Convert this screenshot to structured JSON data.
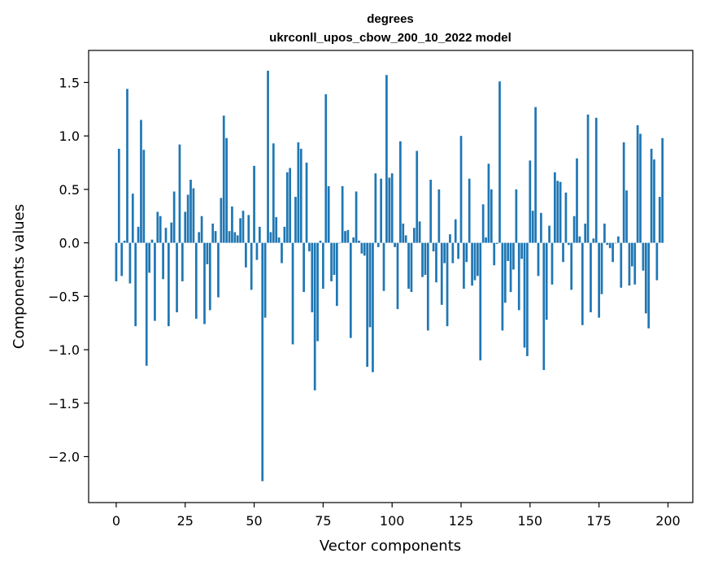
{
  "chart_data": {
    "type": "bar",
    "title": "degrees",
    "subtitle": "ukrconll_upos_cbow_200_10_2022 model",
    "xlabel": "Vector components",
    "ylabel": "Components values",
    "xlim": [
      -10,
      209
    ],
    "ylim": [
      -2.43,
      1.8
    ],
    "xticks": [
      0,
      25,
      50,
      75,
      100,
      125,
      150,
      175,
      200
    ],
    "xtick_labels": [
      "0",
      "25",
      "50",
      "75",
      "100",
      "125",
      "150",
      "175",
      "200"
    ],
    "yticks": [
      -2.0,
      -1.5,
      -1.0,
      -0.5,
      0.0,
      0.5,
      1.0,
      1.5
    ],
    "ytick_labels": [
      "−2.0",
      "−1.5",
      "−1.0",
      "−0.5",
      "0.0",
      "0.5",
      "1.0",
      "1.5"
    ],
    "grid": false,
    "bar_color": "#1f77b4",
    "values": [
      -0.36,
      0.88,
      -0.31,
      0.02,
      1.44,
      -0.38,
      0.46,
      -0.78,
      0.15,
      1.15,
      0.87,
      -1.15,
      -0.28,
      0.03,
      -0.73,
      0.29,
      0.25,
      -0.34,
      0.14,
      -0.78,
      0.19,
      0.48,
      -0.65,
      0.92,
      -0.36,
      0.29,
      0.45,
      0.59,
      0.51,
      -0.71,
      0.1,
      0.25,
      -0.76,
      -0.2,
      -0.63,
      0.18,
      0.11,
      -0.51,
      0.42,
      1.19,
      0.98,
      0.11,
      0.34,
      0.1,
      0.07,
      0.23,
      0.3,
      -0.23,
      0.26,
      -0.44,
      0.72,
      -0.16,
      0.15,
      -2.23,
      -0.7,
      1.61,
      0.1,
      0.93,
      0.24,
      0.05,
      -0.19,
      0.15,
      0.66,
      0.7,
      -0.95,
      0.43,
      0.94,
      0.88,
      -0.46,
      0.75,
      -0.08,
      -0.65,
      -1.38,
      -0.92,
      0.02,
      -0.43,
      1.39,
      0.53,
      -0.36,
      -0.3,
      -0.59,
      0.0,
      0.53,
      0.11,
      0.12,
      -0.89,
      0.05,
      0.48,
      0.02,
      -0.1,
      -0.12,
      -1.16,
      -0.79,
      -1.21,
      0.65,
      -0.04,
      0.6,
      -0.45,
      1.57,
      0.61,
      0.65,
      -0.04,
      -0.62,
      0.95,
      0.18,
      0.07,
      -0.43,
      -0.46,
      0.14,
      0.86,
      0.2,
      -0.32,
      -0.3,
      -0.82,
      0.59,
      -0.08,
      -0.37,
      0.5,
      -0.58,
      -0.19,
      -0.78,
      0.08,
      -0.19,
      0.22,
      -0.15,
      1.0,
      -0.43,
      -0.18,
      0.6,
      -0.4,
      -0.35,
      -0.31,
      -1.1,
      0.36,
      0.05,
      0.74,
      0.5,
      -0.21,
      -0.01,
      1.51,
      -0.82,
      -0.56,
      -0.17,
      -0.46,
      -0.25,
      0.5,
      -0.63,
      -0.15,
      -0.98,
      -1.06,
      0.77,
      0.3,
      1.27,
      -0.31,
      0.28,
      -1.19,
      -0.72,
      0.16,
      -0.39,
      0.66,
      0.58,
      0.57,
      -0.18,
      0.47,
      -0.02,
      -0.44,
      0.25,
      0.79,
      0.06,
      -0.77,
      0.18,
      1.2,
      -0.65,
      0.04,
      1.17,
      -0.7,
      -0.48,
      0.18,
      -0.02,
      -0.05,
      -0.18,
      0.0,
      0.06,
      -0.42,
      0.94,
      0.49,
      -0.4,
      -0.22,
      -0.39,
      1.1,
      1.02,
      -0.26,
      -0.66,
      -0.8,
      0.88,
      0.78,
      -0.35,
      0.43,
      0.98
    ]
  }
}
